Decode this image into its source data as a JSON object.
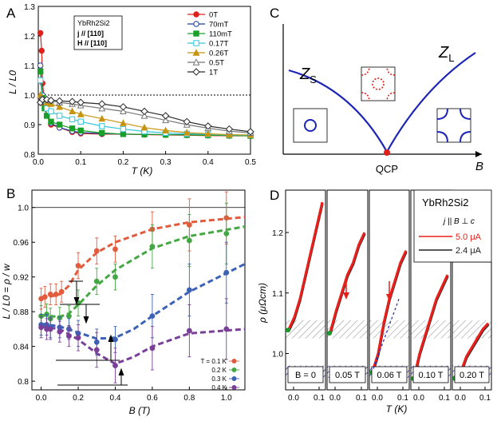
{
  "chart_data": [
    {
      "panel": "A",
      "type": "line",
      "xlabel": "T (K)",
      "ylabel": "L / L0",
      "xlim": [
        0,
        0.5
      ],
      "ylim": [
        0.8,
        1.3
      ],
      "xticks": [
        0,
        0.1,
        0.2,
        0.3,
        0.4,
        0.5
      ],
      "xtick_labels": [
        "0.0",
        "0.1",
        "0.2",
        "0.3",
        "0.4",
        "0.5"
      ],
      "yticks": [
        0.8,
        0.9,
        1.0,
        1.1,
        1.2,
        1.3
      ],
      "ytick_labels": [
        "0.8",
        "0.9",
        "1.0",
        "1.1",
        "1.2",
        "1.3"
      ],
      "reference_line": 1.0,
      "inset_box": [
        "YbRh2Si2",
        "j // [110]",
        "H // [110]"
      ],
      "series": [
        {
          "name": "0T",
          "color": "#e0201b",
          "marker": "circle-filled",
          "x": [
            0.005,
            0.008,
            0.01,
            0.015,
            0.02,
            0.03,
            0.05,
            0.08,
            0.1,
            0.15,
            0.2,
            0.25,
            0.3,
            0.35,
            0.4,
            0.45,
            0.5
          ],
          "y": [
            1.21,
            1.15,
            1.04,
            0.97,
            0.93,
            0.9,
            0.89,
            0.875,
            0.87,
            0.868,
            0.868,
            0.866,
            0.865,
            0.864,
            0.863,
            0.862,
            0.862
          ]
        },
        {
          "name": "70mT",
          "color": "#1f3f9f",
          "marker": "circle-open",
          "x": [
            0.005,
            0.01,
            0.015,
            0.02,
            0.03,
            0.05,
            0.08,
            0.1,
            0.15,
            0.2,
            0.25,
            0.3,
            0.35,
            0.4,
            0.45,
            0.5
          ],
          "y": [
            1.1,
            1.0,
            0.955,
            0.93,
            0.905,
            0.89,
            0.878,
            0.873,
            0.87,
            0.868,
            0.867,
            0.866,
            0.866,
            0.865,
            0.865,
            0.864
          ]
        },
        {
          "name": "110mT",
          "color": "#18a028",
          "marker": "square-filled",
          "x": [
            0.005,
            0.01,
            0.015,
            0.02,
            0.03,
            0.05,
            0.08,
            0.1,
            0.15,
            0.2,
            0.25,
            0.3,
            0.35,
            0.4,
            0.45,
            0.5
          ],
          "y": [
            1.08,
            0.99,
            0.955,
            0.93,
            0.91,
            0.9,
            0.887,
            0.88,
            0.872,
            0.868,
            0.867,
            0.866,
            0.865,
            0.864,
            0.863,
            0.862
          ]
        },
        {
          "name": "0.17T",
          "color": "#33c6dc",
          "marker": "square-open",
          "x": [
            0.005,
            0.01,
            0.02,
            0.03,
            0.05,
            0.08,
            0.1,
            0.15,
            0.2,
            0.25,
            0.3,
            0.35,
            0.4,
            0.45,
            0.5
          ],
          "y": [
            1.05,
            0.98,
            0.955,
            0.945,
            0.93,
            0.918,
            0.91,
            0.895,
            0.885,
            0.877,
            0.872,
            0.869,
            0.867,
            0.865,
            0.864
          ]
        },
        {
          "name": "0.26T",
          "color": "#c79410",
          "marker": "triangle-filled",
          "x": [
            0.005,
            0.01,
            0.02,
            0.03,
            0.05,
            0.08,
            0.1,
            0.15,
            0.2,
            0.25,
            0.3,
            0.35,
            0.4,
            0.45,
            0.5
          ],
          "y": [
            1.0,
            0.985,
            0.975,
            0.97,
            0.96,
            0.945,
            0.935,
            0.92,
            0.905,
            0.89,
            0.88,
            0.873,
            0.869,
            0.866,
            0.865
          ]
        },
        {
          "name": "0.5T",
          "color": "#777777",
          "marker": "triangle-open",
          "x": [
            0.005,
            0.01,
            0.02,
            0.03,
            0.05,
            0.08,
            0.1,
            0.15,
            0.2,
            0.25,
            0.3,
            0.35,
            0.4,
            0.45,
            0.5
          ],
          "y": [
            0.985,
            0.988,
            0.985,
            0.982,
            0.975,
            0.97,
            0.965,
            0.955,
            0.945,
            0.93,
            0.915,
            0.9,
            0.888,
            0.878,
            0.872
          ]
        },
        {
          "name": "1T",
          "color": "#2a2a2a",
          "marker": "diamond-open",
          "x": [
            0.005,
            0.01,
            0.02,
            0.03,
            0.05,
            0.08,
            0.1,
            0.15,
            0.2,
            0.25,
            0.3,
            0.35,
            0.4,
            0.45,
            0.5
          ],
          "y": [
            0.975,
            0.985,
            0.985,
            0.982,
            0.98,
            0.978,
            0.975,
            0.97,
            0.96,
            0.945,
            0.93,
            0.91,
            0.895,
            0.885,
            0.876
          ]
        }
      ]
    },
    {
      "panel": "C",
      "type": "diagram",
      "xlabel": "B",
      "labels": {
        "left": "Z",
        "left_sub": "S",
        "right": "Z",
        "right_sub": "L",
        "point": "QCP"
      }
    },
    {
      "panel": "B",
      "type": "scatter",
      "xlabel": "B (T)",
      "ylabel": "L / L0 = ρ / w",
      "xlim": [
        -0.05,
        1.1
      ],
      "ylim": [
        0.79,
        1.02
      ],
      "xticks": [
        0,
        0.2,
        0.4,
        0.6,
        0.8,
        1.0
      ],
      "xtick_labels": [
        "0.0",
        "0.2",
        "0.4",
        "0.6",
        "0.8",
        "1.0"
      ],
      "yticks": [
        0.8,
        0.84,
        0.88,
        0.92,
        0.96,
        1.0
      ],
      "ytick_labels": [
        "0.8",
        "0.84",
        "0.88",
        "0.92",
        "0.96",
        "1.0"
      ],
      "reference_line": 1.0,
      "legend_title": "T = 0.1 K",
      "series": [
        {
          "name": "T = 0.1 K",
          "color": "#e25b3c",
          "x": [
            0.0,
            0.02,
            0.05,
            0.08,
            0.11,
            0.2,
            0.3,
            0.4,
            0.6,
            0.8,
            1.0
          ],
          "y": [
            0.895,
            0.897,
            0.9,
            0.9,
            0.903,
            0.933,
            0.95,
            0.952,
            0.975,
            0.98,
            0.988
          ],
          "err": [
            0.012,
            0.012,
            0.012,
            0.012,
            0.012,
            0.015,
            0.015,
            0.015,
            0.02,
            0.03,
            0.03
          ],
          "fit_x": [
            0.0,
            0.1,
            0.15,
            0.2,
            0.3,
            0.4,
            0.6,
            0.8,
            1.1
          ],
          "fit_y": [
            0.895,
            0.9,
            0.91,
            0.928,
            0.948,
            0.96,
            0.975,
            0.983,
            0.989
          ]
        },
        {
          "name": "0.2 K",
          "color": "#43a843",
          "x": [
            0.0,
            0.03,
            0.05,
            0.1,
            0.15,
            0.2,
            0.3,
            0.4,
            0.6,
            0.8,
            1.0
          ],
          "y": [
            0.875,
            0.877,
            0.872,
            0.873,
            0.875,
            0.89,
            0.915,
            0.92,
            0.955,
            0.962,
            0.97
          ],
          "err": [
            0.012,
            0.012,
            0.012,
            0.012,
            0.012,
            0.015,
            0.015,
            0.015,
            0.025,
            0.03,
            0.035
          ],
          "fit_x": [
            0.0,
            0.1,
            0.15,
            0.2,
            0.3,
            0.4,
            0.6,
            0.8,
            1.1
          ],
          "fit_y": [
            0.876,
            0.874,
            0.878,
            0.888,
            0.91,
            0.928,
            0.953,
            0.967,
            0.978
          ]
        },
        {
          "name": "0.3 K",
          "color": "#3b62b5",
          "x": [
            0.0,
            0.03,
            0.05,
            0.1,
            0.15,
            0.2,
            0.3,
            0.4,
            0.6,
            0.8,
            1.0
          ],
          "y": [
            0.865,
            0.865,
            0.862,
            0.862,
            0.86,
            0.855,
            0.845,
            0.848,
            0.875,
            0.905,
            0.925
          ],
          "err": [
            0.012,
            0.012,
            0.012,
            0.012,
            0.012,
            0.015,
            0.015,
            0.015,
            0.025,
            0.03,
            0.035
          ],
          "fit_x": [
            0.0,
            0.1,
            0.2,
            0.3,
            0.4,
            0.5,
            0.6,
            0.8,
            1.1
          ],
          "fit_y": [
            0.866,
            0.863,
            0.856,
            0.849,
            0.85,
            0.86,
            0.875,
            0.903,
            0.935
          ]
        },
        {
          "name": "0.4 K",
          "color": "#7a3f98",
          "x": [
            0.0,
            0.03,
            0.05,
            0.1,
            0.15,
            0.2,
            0.3,
            0.4,
            0.6,
            0.8,
            1.0
          ],
          "y": [
            0.862,
            0.86,
            0.86,
            0.857,
            0.852,
            0.85,
            0.836,
            0.818,
            0.838,
            0.858,
            0.86
          ],
          "err": [
            0.012,
            0.012,
            0.012,
            0.012,
            0.012,
            0.015,
            0.02,
            0.02,
            0.025,
            0.03,
            0.035
          ],
          "fit_x": [
            0.0,
            0.1,
            0.2,
            0.3,
            0.4,
            0.5,
            0.6,
            0.8,
            1.1
          ],
          "fit_y": [
            0.863,
            0.86,
            0.848,
            0.832,
            0.82,
            0.828,
            0.84,
            0.855,
            0.86
          ]
        }
      ]
    },
    {
      "panel": "D",
      "type": "line",
      "xlabel": "T (K)",
      "ylabel": "ρ  (μΩcm)",
      "ylim": [
        0.94,
        1.27
      ],
      "yticks": [
        1.0,
        1.1,
        1.2
      ],
      "ytick_labels": [
        "1.0",
        "1.1",
        "1.2"
      ],
      "xtick_labels": [
        "0.0",
        "0.1"
      ],
      "subpanel_labels": [
        "B = 0",
        "0.05 T",
        "0.06 T",
        "0.10 T",
        "0.20 T"
      ],
      "legend_title": "YbRh2Si2",
      "legend_subtitle": "j || B ⊥ c",
      "series": [
        {
          "name": "5.0 μA",
          "color": "#e8201c"
        },
        {
          "name": "2.4 μA",
          "color": "#222222"
        }
      ],
      "bands": [
        {
          "color": "#9a9a9a",
          "ymin": 1.025,
          "ymax": 1.055
        },
        {
          "color": "#2a2fb8",
          "ymin": 0.96,
          "ymax": 0.98
        }
      ],
      "subpanel_curves": [
        {
          "x": [
            0.0,
            0.02,
            0.04,
            0.06,
            0.08,
            0.1,
            0.12
          ],
          "y": [
            1.04,
            1.06,
            1.09,
            1.13,
            1.17,
            1.21,
            1.25
          ]
        },
        {
          "x": [
            0.0,
            0.02,
            0.04,
            0.06,
            0.08,
            0.1,
            0.12
          ],
          "y": [
            1.035,
            1.07,
            1.1,
            1.13,
            1.15,
            1.18,
            1.2
          ]
        },
        {
          "x": [
            0.0,
            0.02,
            0.04,
            0.06,
            0.08,
            0.1,
            0.12
          ],
          "y": [
            0.97,
            1.0,
            1.05,
            1.09,
            1.12,
            1.15,
            1.17
          ]
        },
        {
          "x": [
            0.0,
            0.02,
            0.04,
            0.06,
            0.08,
            0.1,
            0.12
          ],
          "y": [
            0.96,
            1.0,
            1.03,
            1.06,
            1.09,
            1.11,
            1.13
          ]
        },
        {
          "x": [
            0.0,
            0.02,
            0.04,
            0.06,
            0.08,
            0.1,
            0.12
          ],
          "y": [
            0.96,
            0.97,
            0.995,
            1.01,
            1.025,
            1.04,
            1.05
          ]
        }
      ]
    }
  ],
  "panel_letters": [
    "A",
    "B",
    "C",
    "D"
  ]
}
